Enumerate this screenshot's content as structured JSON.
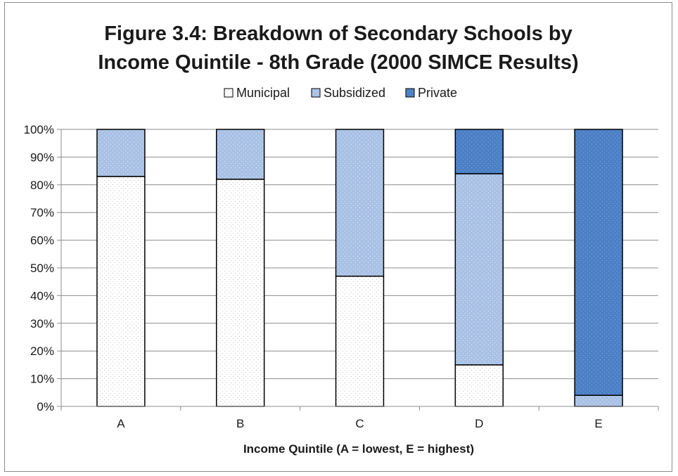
{
  "chart_data": {
    "type": "bar",
    "stacked": true,
    "percent_stacked": true,
    "title_line1": "Figure 3.4: Breakdown of Secondary Schools by",
    "title_line2": "Income Quintile - 8th Grade (2000 SIMCE Results)",
    "xlabel": "Income Quintile (A = lowest, E = highest)",
    "ylabel": "",
    "categories": [
      "A",
      "B",
      "C",
      "D",
      "E"
    ],
    "series": [
      {
        "name": "Municipal",
        "values": [
          83,
          82,
          47,
          15,
          0
        ],
        "color": "#ffffff",
        "pattern": "dots-light"
      },
      {
        "name": "Subsidized",
        "values": [
          17,
          18,
          53,
          69,
          4
        ],
        "color": "#a7c0e4",
        "pattern": "dots-blue"
      },
      {
        "name": "Private",
        "values": [
          0,
          0,
          0,
          16,
          96
        ],
        "color": "#4a7fc4",
        "pattern": "dots-dark"
      }
    ],
    "ylim": [
      0,
      100
    ],
    "yticks": [
      "0%",
      "10%",
      "20%",
      "30%",
      "40%",
      "50%",
      "60%",
      "70%",
      "80%",
      "90%",
      "100%"
    ],
    "grid": true,
    "legend_position": "top"
  }
}
